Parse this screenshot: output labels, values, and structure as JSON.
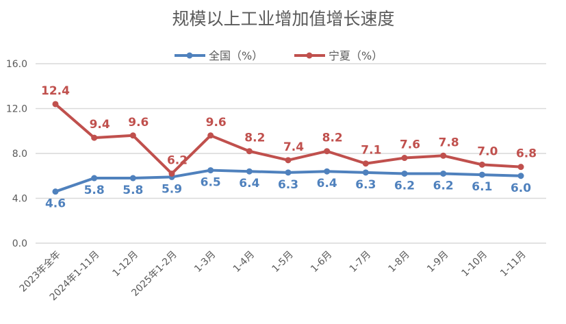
{
  "chart_data": {
    "type": "line",
    "title": "规模以上工业增加值增长速度",
    "categories": [
      "2023年全年",
      "2024年1-11月",
      "1-12月",
      "2025年1-2月",
      "1-3月",
      "1-4月",
      "1-5月",
      "1-6月",
      "1-7月",
      "1-8月",
      "1-9月",
      "1-10月",
      "1-11月"
    ],
    "series": [
      {
        "name": "全国（%）",
        "color": "#4F81BD",
        "values": [
          4.6,
          5.8,
          5.8,
          5.9,
          6.5,
          6.4,
          6.3,
          6.4,
          6.3,
          6.2,
          6.2,
          6.1,
          6.0
        ]
      },
      {
        "name": "宁夏（%）",
        "color": "#C0504D",
        "values": [
          12.4,
          9.4,
          9.6,
          6.2,
          9.6,
          8.2,
          7.4,
          8.2,
          7.1,
          7.6,
          7.8,
          7.0,
          6.8
        ]
      }
    ],
    "yticks": [
      "0.0",
      "4.0",
      "8.0",
      "12.0",
      "16.0"
    ],
    "ylim": [
      0,
      16
    ],
    "grid": true,
    "legend": "top-center",
    "xlabel": "",
    "ylabel": ""
  }
}
